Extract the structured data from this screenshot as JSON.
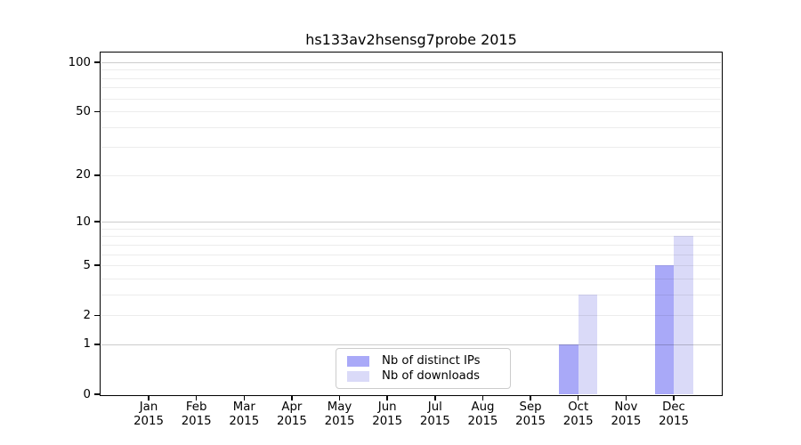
{
  "chart_data": {
    "type": "bar",
    "title": "hs133av2hsensg7probe 2015",
    "categories": [
      "Jan",
      "Feb",
      "Mar",
      "Apr",
      "May",
      "Jun",
      "Jul",
      "Aug",
      "Sep",
      "Oct",
      "Nov",
      "Dec"
    ],
    "category_year_line": "2015",
    "series": [
      {
        "name": "Nb of distinct IPs",
        "color": "#a9a9f8",
        "values": [
          0,
          0,
          0,
          0,
          0,
          0,
          0,
          0,
          0,
          1,
          0,
          5
        ]
      },
      {
        "name": "Nb of downloads",
        "color": "#dadaf8",
        "values": [
          0,
          0,
          0,
          0,
          0,
          0,
          0,
          0,
          0,
          3,
          0,
          8
        ]
      }
    ],
    "xlabel": "",
    "ylabel": "",
    "yscale": "log10(1+x)",
    "ylim": [
      0,
      115
    ],
    "y_ticks": [
      100,
      50,
      20,
      10,
      5,
      2,
      1,
      0
    ],
    "grid": true,
    "gridlines_major": [
      1,
      10,
      100
    ],
    "gridlines_minor": [
      2,
      3,
      4,
      5,
      6,
      7,
      8,
      9,
      20,
      30,
      40,
      50,
      60,
      70,
      80,
      90
    ],
    "legend": {
      "entries": [
        "Nb of distinct IPs",
        "Nb of downloads"
      ],
      "position": "lower center"
    },
    "colors": {
      "bar_distinct_ips": "#a9a9f8",
      "bar_downloads": "#dadaf8",
      "grid_major": "#cccccc",
      "grid_minor": "#ececec",
      "axis": "#000000",
      "text": "#000000",
      "legend_border": "#cccccc",
      "background": "#ffffff"
    }
  }
}
